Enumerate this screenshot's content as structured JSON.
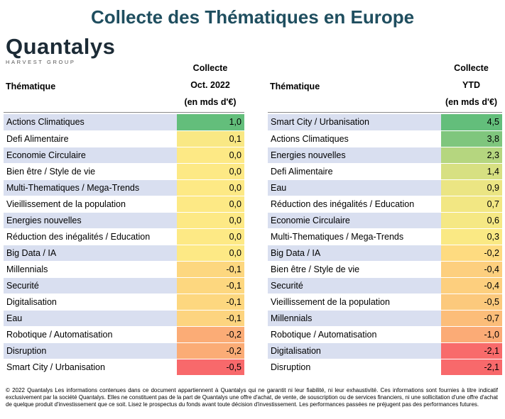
{
  "title": "Collecte des Thématiques en Europe",
  "logo": {
    "name": "Quantalys",
    "sub": "HARVEST GROUP"
  },
  "left": {
    "theme_header": "Thématique",
    "value_header": [
      "Collecte",
      "Oct. 2022",
      "(en mds d'€)"
    ],
    "rows": [
      {
        "name": "Actions Climatiques",
        "value": "1,0",
        "color": "#63be7b"
      },
      {
        "name": "Defi Alimentaire",
        "value": "0,1",
        "color": "#f9e884"
      },
      {
        "name": "Economie Circulaire",
        "value": "0,0",
        "color": "#fde985"
      },
      {
        "name": "Bien être / Style de vie",
        "value": "0,0",
        "color": "#fde985"
      },
      {
        "name": "Multi-Thematiques / Mega-Trends",
        "value": "0,0",
        "color": "#fde985"
      },
      {
        "name": "Vieillissement de la population",
        "value": "0,0",
        "color": "#fde985"
      },
      {
        "name": "Energies nouvelles",
        "value": "0,0",
        "color": "#fde985"
      },
      {
        "name": "Réduction des inégalités / Education",
        "value": "0,0",
        "color": "#fde985"
      },
      {
        "name": "Big Data / IA",
        "value": "0,0",
        "color": "#fde985"
      },
      {
        "name": "Millennials",
        "value": "-0,1",
        "color": "#fdd77f"
      },
      {
        "name": "Securité",
        "value": "-0,1",
        "color": "#fdd77f"
      },
      {
        "name": "Digitalisation",
        "value": "-0,1",
        "color": "#fdd77f"
      },
      {
        "name": "Eau",
        "value": "-0,1",
        "color": "#fdd47f"
      },
      {
        "name": "Robotique / Automatisation",
        "value": "-0,2",
        "color": "#fbac76"
      },
      {
        "name": "Disruption",
        "value": "-0,2",
        "color": "#fbac76"
      },
      {
        "name": "Smart City / Urbanisation",
        "value": "-0,5",
        "color": "#f8696b"
      }
    ]
  },
  "right": {
    "theme_header": "Thématique",
    "value_header": [
      "Collecte",
      "YTD",
      "(en mds d'€)"
    ],
    "rows": [
      {
        "name": "Smart City / Urbanisation",
        "value": "4,5",
        "color": "#63be7b"
      },
      {
        "name": "Actions Climatiques",
        "value": "3,8",
        "color": "#7fc67d"
      },
      {
        "name": "Energies nouvelles",
        "value": "2,3",
        "color": "#b5d67f"
      },
      {
        "name": "Defi Alimentaire",
        "value": "1,4",
        "color": "#d7e082"
      },
      {
        "name": "Eau",
        "value": "0,9",
        "color": "#ebe583"
      },
      {
        "name": "Réduction des inégalités / Education",
        "value": "0,7",
        "color": "#f2e783"
      },
      {
        "name": "Economie Circulaire",
        "value": "0,6",
        "color": "#f5e884"
      },
      {
        "name": "Multi-Thematiques / Mega-Trends",
        "value": "0,3",
        "color": "#fae984"
      },
      {
        "name": "Big Data / IA",
        "value": "-0,2",
        "color": "#fedb80"
      },
      {
        "name": "Bien être / Style de vie",
        "value": "-0,4",
        "color": "#fdcf7e"
      },
      {
        "name": "Securité",
        "value": "-0,4",
        "color": "#fdcf7e"
      },
      {
        "name": "Vieillissement de la population",
        "value": "-0,5",
        "color": "#fcc97c"
      },
      {
        "name": "Millennials",
        "value": "-0,7",
        "color": "#fcbd79"
      },
      {
        "name": "Robotique / Automatisation",
        "value": "-1,0",
        "color": "#fbab76"
      },
      {
        "name": "Digitalisation",
        "value": "-2,1",
        "color": "#f86b6b"
      },
      {
        "name": "Disruption",
        "value": "-2,1",
        "color": "#f8696b"
      }
    ]
  },
  "footer": "© 2022 Quantalys Les informations contenues dans ce document appartiennent à Quantalys qui ne garantit ni leur fiabilité, ni leur exhaustivité. Ces informations sont fournies à titre indicatif exclusivement par la société Quantalys. Elles ne constituent pas de la part de Quantalys une offre d'achat, de vente, de souscription ou de services financiers, ni une sollicitation d'une offre d'achat de quelque produit d'investissement que ce soit. Lisez le prospectus du fonds avant toute décision d'investissement. Les performances passées ne préjugent pas des performances futures."
}
